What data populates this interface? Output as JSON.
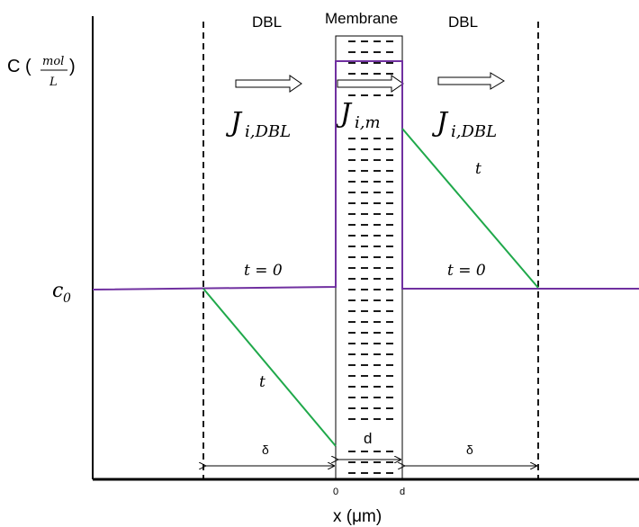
{
  "title": "",
  "y_axis": {
    "label_main": "C (",
    "label_frac_num": "mol",
    "label_frac_den": "L",
    "label_close": ")",
    "c0_label": "c",
    "c0_sub": "0"
  },
  "x_axis": {
    "label": "x (μm)",
    "tick_0": "0",
    "tick_d": "d"
  },
  "regions": {
    "left_dbl": "DBL",
    "membrane": "Membrane",
    "right_dbl": "DBL"
  },
  "fluxes": {
    "left": {
      "J": "J",
      "sub": "i,DBL"
    },
    "membrane": {
      "J": "J",
      "sub": "i,m"
    },
    "right": {
      "J": "J",
      "sub": "i,DBL"
    }
  },
  "annotations": {
    "t0_left": "t = 0",
    "t0_right": "t = 0",
    "t_left": "t",
    "t_right": "t",
    "delta_left": "δ",
    "delta_right": "δ",
    "d_width": "d"
  },
  "colors": {
    "profile_t0": "#7030a0",
    "profile_t": "#1fa84a",
    "axis": "#000000"
  }
}
